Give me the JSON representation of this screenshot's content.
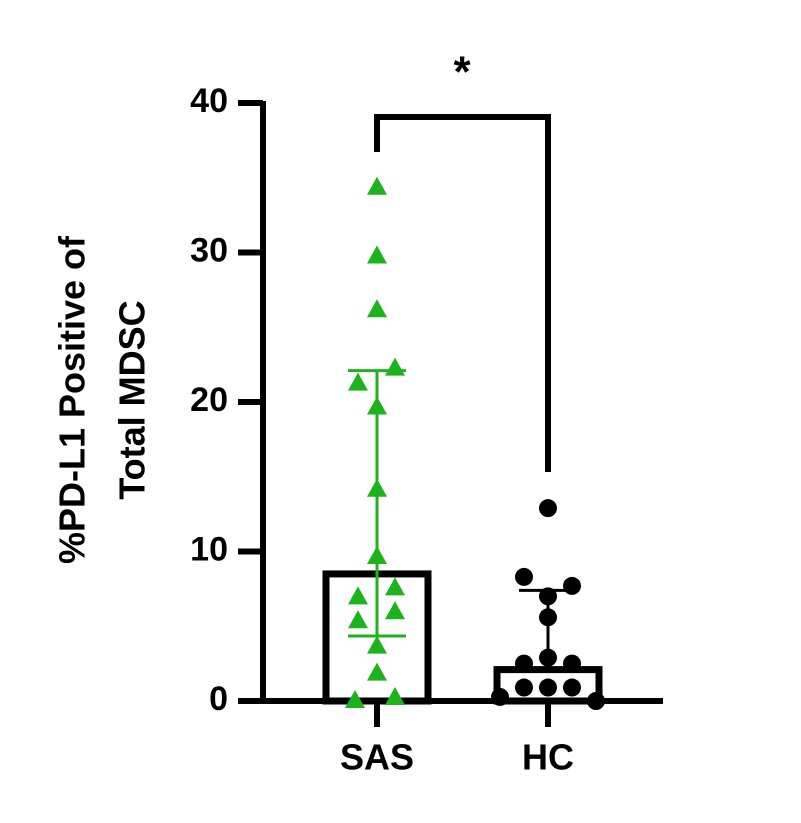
{
  "chart_data": {
    "type": "bar_scatter",
    "ylabel": [
      "%PD-L1 Positive of",
      "Total  MDSC"
    ],
    "categories": [
      "SAS",
      "HC"
    ],
    "ylim": [
      0,
      40
    ],
    "yticks": [
      0,
      10,
      20,
      30,
      40
    ],
    "annotation": "*",
    "series": [
      {
        "color": "#1db31d",
        "marker": "triangle",
        "bar": 8.5,
        "error_range": [
          4.35,
          22.1
        ],
        "values": [
          0.07,
          0.27,
          1.9,
          3.7,
          5.4,
          6.0,
          7.0,
          7.6,
          9.7,
          14.2,
          19.7,
          21.3,
          22.3,
          26.2,
          29.8,
          34.4
        ]
      },
      {
        "color": "#000000",
        "marker": "circle",
        "bar": 2.1,
        "error_range": [
          2.0,
          7.4
        ],
        "values": [
          0.0,
          0.27,
          0.9,
          0.9,
          0.9,
          2.5,
          2.5,
          2.9,
          5.6,
          7.0,
          7.7,
          8.3,
          12.9
        ]
      }
    ]
  }
}
